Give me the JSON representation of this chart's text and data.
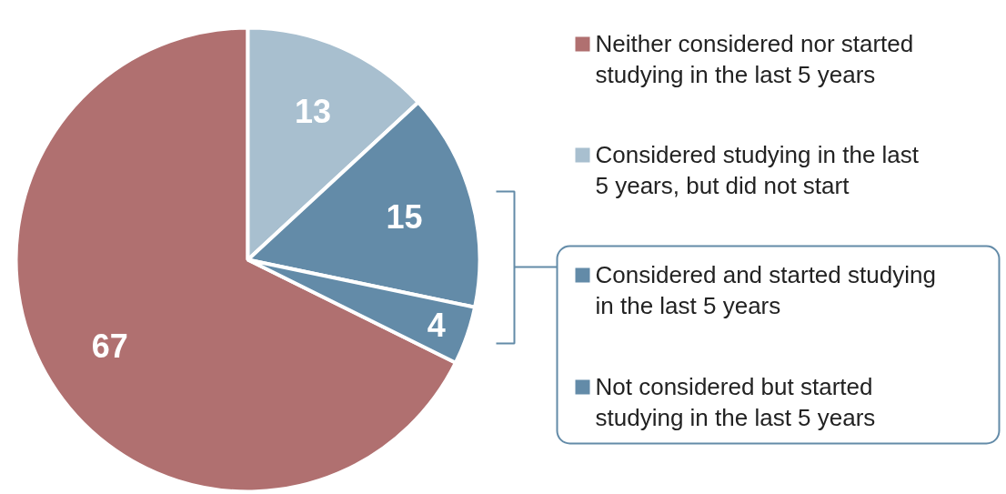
{
  "chart_data": {
    "type": "pie",
    "categories": [
      "Neither considered nor started studying in the last 5 years",
      "Considered studying in the last 5 years, but did not start",
      "Considered and started studying in the last 5 years",
      "Not considered but started studying in the last 5 years"
    ],
    "values": [
      67,
      13,
      15,
      4
    ],
    "colors": [
      "#b07070",
      "#a8bfcf",
      "#638ba8",
      "#638ba8"
    ],
    "data_labels": true,
    "legend": "right"
  }
}
